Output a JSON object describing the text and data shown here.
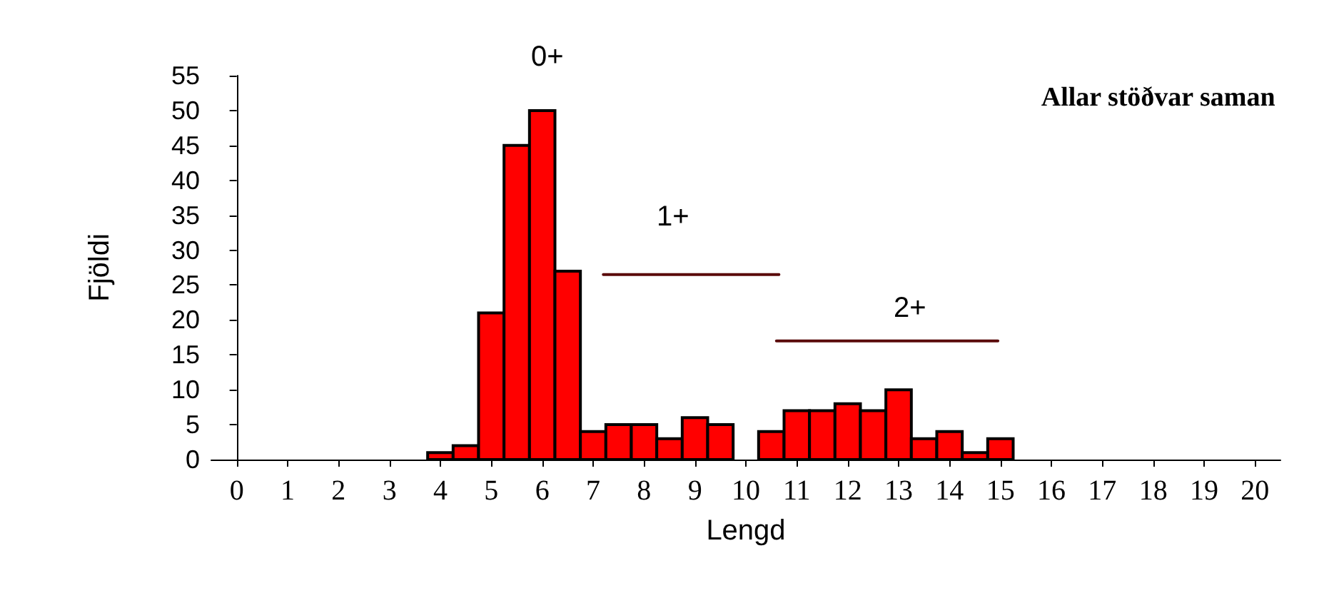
{
  "chart_data": {
    "type": "histogram",
    "title": "Allar stöðvar saman",
    "xlabel": "Lengd",
    "ylabel": "Fjöldi",
    "bins": [
      3.75,
      4.25,
      4.75,
      5.25,
      5.75,
      6.25,
      6.75,
      7.25,
      7.75,
      8.25,
      8.75,
      9.25,
      9.75,
      10.25,
      10.75,
      11.25,
      11.75,
      12.25,
      12.75,
      13.25,
      13.75,
      14.25,
      14.75,
      15.25
    ],
    "values": [
      1,
      2,
      21,
      45,
      50,
      27,
      4,
      5,
      5,
      3,
      6,
      5,
      null,
      4,
      7,
      7,
      8,
      7,
      10,
      3,
      4,
      1,
      3
    ],
    "color": "#ff0000",
    "series": [
      {
        "type": "line",
        "x": [
          7.2,
          10.65
        ],
        "values": [
          26.5,
          26.5
        ],
        "color": "#5a0a0a"
      },
      {
        "type": "line",
        "x": [
          10.6,
          14.95
        ],
        "values": [
          17,
          17
        ],
        "color": "#5a0a0a"
      }
    ],
    "annotations": [
      "0+",
      "1+",
      "2+"
    ],
    "xlim": [
      -0.5,
      20.5
    ],
    "xticks": [
      0,
      1,
      2,
      3,
      4,
      5,
      6,
      7,
      8,
      9,
      10,
      11,
      12,
      13,
      14,
      15,
      16,
      17,
      18,
      19,
      20
    ],
    "ylim": [
      0,
      55
    ],
    "yticks": [
      0,
      5,
      10,
      15,
      20,
      25,
      30,
      35,
      40,
      45,
      50,
      55
    ],
    "grid": false,
    "marker": "none",
    "line_style": "solid"
  }
}
